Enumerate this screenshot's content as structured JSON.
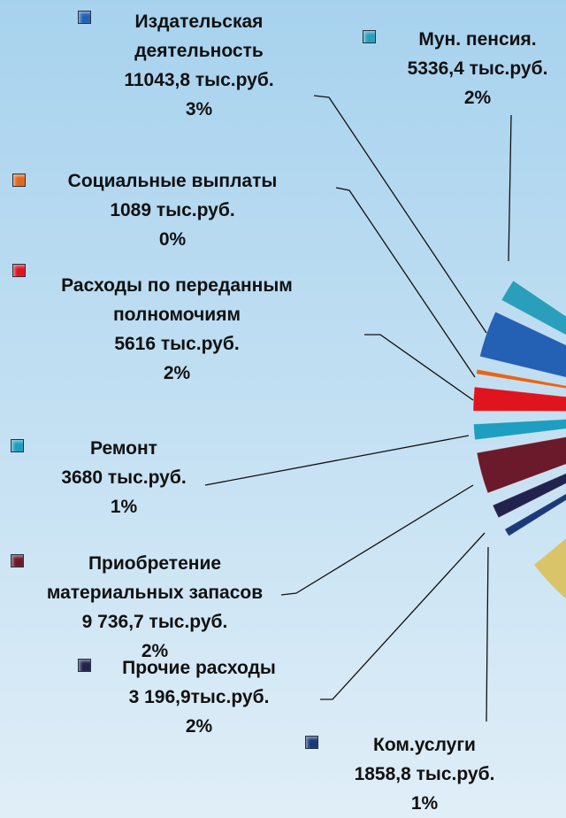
{
  "chart_data": {
    "type": "pie",
    "categories": [
      "Мун. пенсия.",
      "Издательская деятельность",
      "Социальные выплаты",
      "Расходы по переданным полномочиям",
      "Ремонт",
      "Приобретение материальных запасов",
      "Прочие расходы",
      "Ком.услуги"
    ],
    "amounts": [
      5336.4,
      11043.8,
      1089,
      5616,
      3680,
      9736.7,
      3196.9,
      1858.8
    ],
    "amount_labels": [
      "5336,4 тыс.руб.",
      "11043,8 тыс.руб.",
      "1089 тыс.руб.",
      "5616 тыс.руб.",
      "3680 тыс.руб.",
      "9 736,7 тыс.руб.",
      "3 196,9тыс.руб.",
      "1858,8 тыс.руб."
    ],
    "values": [
      2,
      3,
      0,
      2,
      1,
      2,
      2,
      1
    ],
    "value_labels": [
      "2%",
      "3%",
      "0%",
      "2%",
      "1%",
      "2%",
      "2%",
      "1%"
    ],
    "colors": [
      "#2a9fbb",
      "#2460b4",
      "#e2661e",
      "#e0141e",
      "#1e9ec0",
      "#6a1a2a",
      "#22224e",
      "#1a3a78"
    ]
  }
}
